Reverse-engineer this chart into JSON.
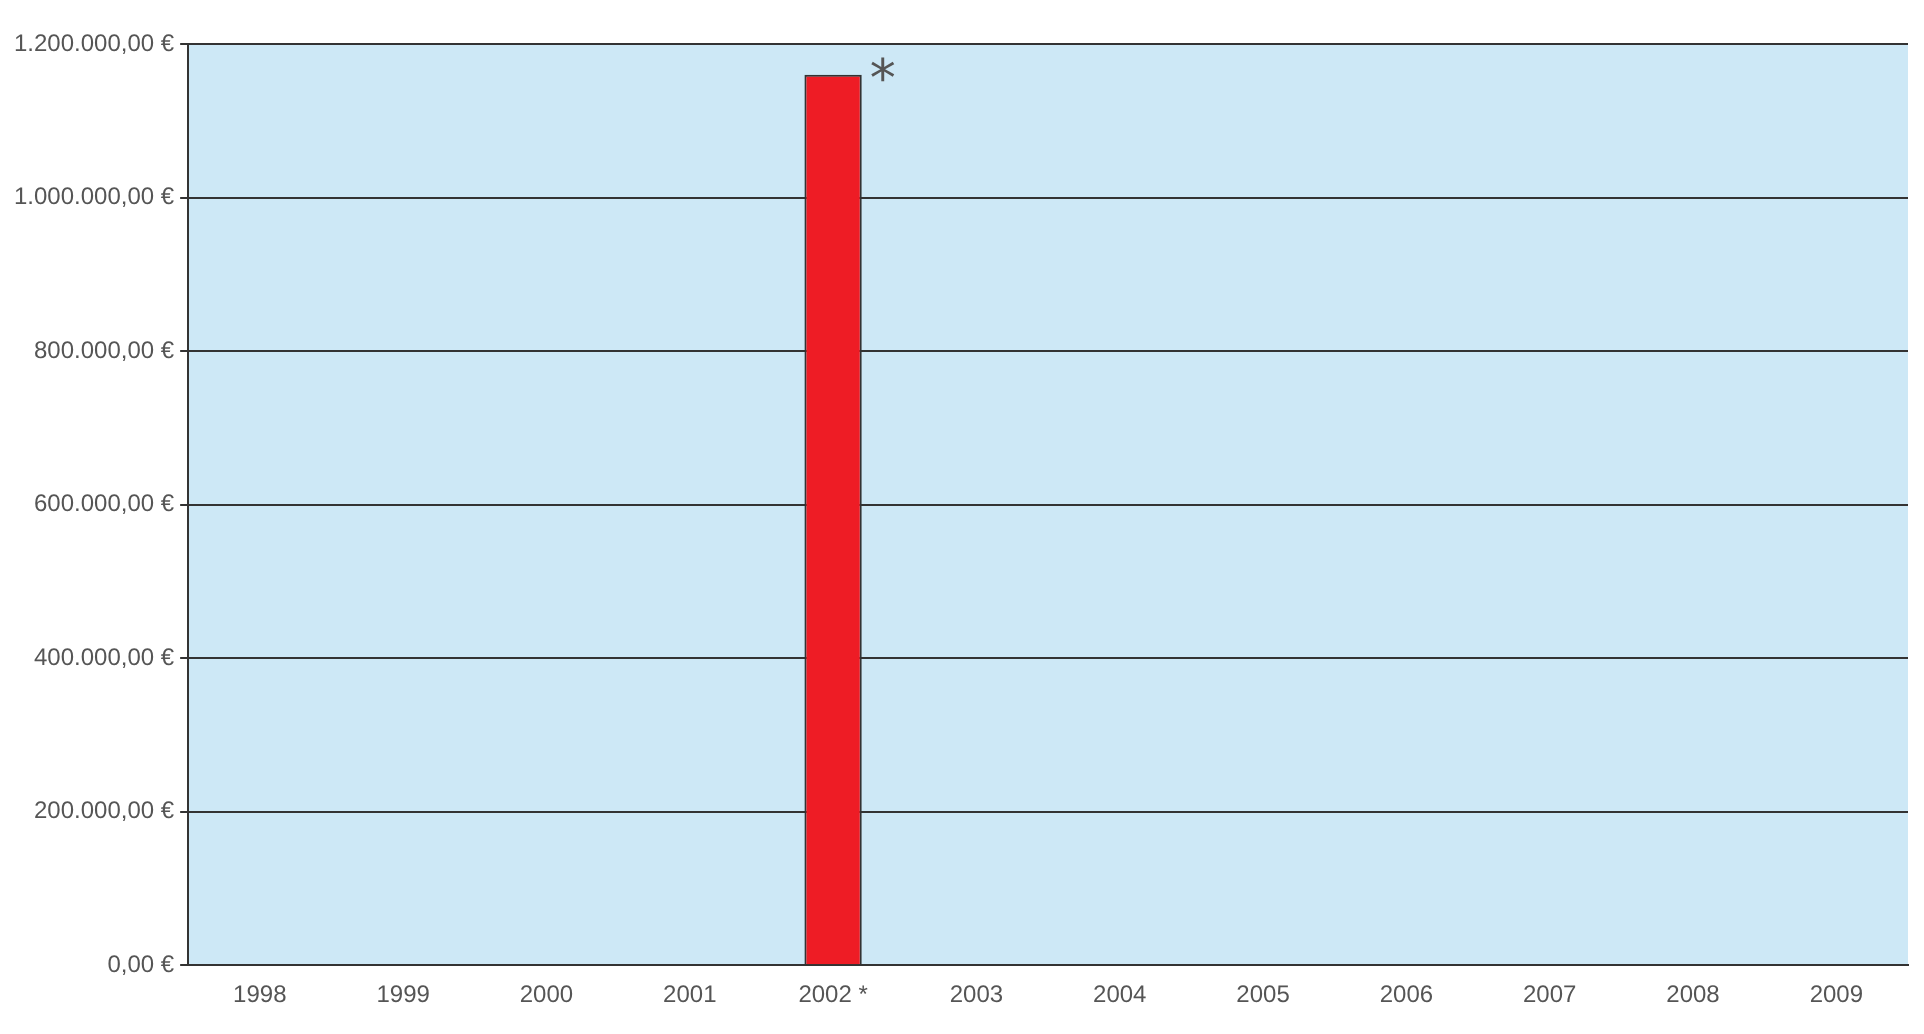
{
  "chart_data": {
    "type": "bar",
    "categories": [
      "1998",
      "1999",
      "2000",
      "2001",
      "2002 *",
      "2003",
      "2004",
      "2005",
      "2006",
      "2007",
      "2008",
      "2009"
    ],
    "values": [
      0,
      0,
      0,
      0,
      1160000,
      0,
      0,
      0,
      0,
      0,
      0,
      0
    ],
    "color": "#ee1c25",
    "ylim": [
      0,
      1200000
    ],
    "yticks": [
      {
        "value": 0,
        "label": "0,00 €"
      },
      {
        "value": 200000,
        "label": "200.000,00 €"
      },
      {
        "value": 400000,
        "label": "400.000,00 €"
      },
      {
        "value": 600000,
        "label": "600.000,00 €"
      },
      {
        "value": 800000,
        "label": "800.000,00 €"
      },
      {
        "value": 1000000,
        "label": "1.000.000,00 €"
      },
      {
        "value": 1200000,
        "label": "1.200.000,00 €"
      }
    ],
    "grid": "y",
    "legend": false,
    "annotations": [
      {
        "text": "*",
        "x": "2002 *",
        "y": 1160000
      }
    ]
  }
}
